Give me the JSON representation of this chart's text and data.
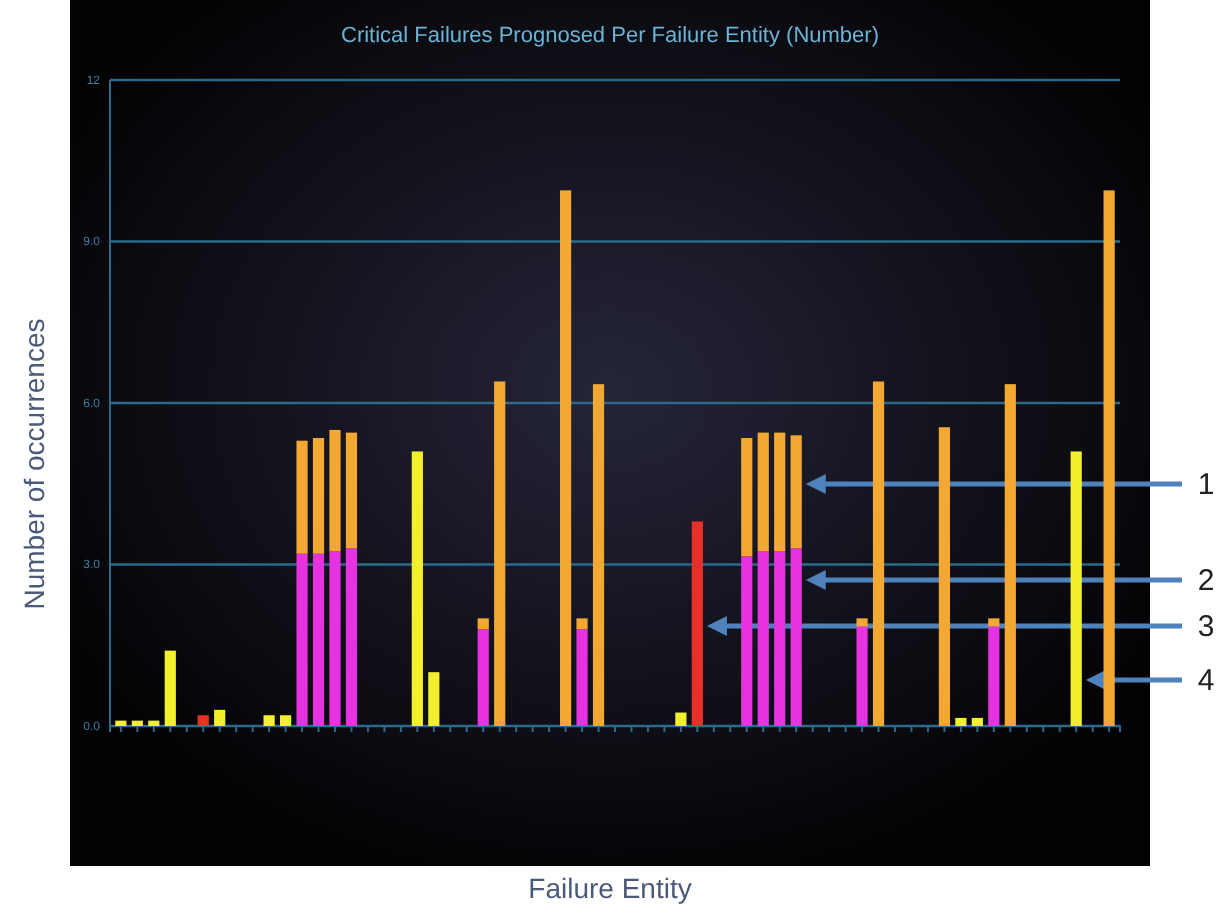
{
  "chart_data": {
    "type": "bar",
    "title": "Critical Failures Prognosed Per Failure Entity (Number)",
    "xlabel": "Failure Entity",
    "ylabel": "Number of occurrences",
    "categories": [
      null,
      null,
      null,
      null,
      null,
      null,
      null,
      null,
      null,
      null,
      null,
      null,
      null,
      null,
      null,
      null,
      null,
      null,
      null,
      null,
      null,
      null,
      null,
      null,
      null,
      null,
      null,
      null,
      null,
      null,
      null,
      null,
      null,
      null,
      null,
      null,
      null,
      null,
      null,
      null,
      null,
      null,
      null,
      null,
      null,
      null,
      null,
      null,
      null,
      null,
      null,
      null,
      null,
      null,
      null,
      null,
      null,
      null,
      null,
      null,
      null
    ],
    "stacked": true,
    "ylim": [
      0,
      12
    ],
    "yticks": [
      {
        "value": 0,
        "label": "0.0"
      },
      {
        "value": 3,
        "label": "3.0"
      },
      {
        "value": 6,
        "label": "6.0"
      },
      {
        "value": 9,
        "label": "9.0"
      },
      12
    ],
    "grid": "y",
    "series": [
      {
        "color": "#f2f02c",
        "values": [
          0.1,
          0.1,
          0.1,
          1.4,
          null,
          null,
          0.3,
          null,
          null,
          0.2,
          0.2,
          null,
          null,
          null,
          null,
          null,
          null,
          null,
          5.1,
          1.0,
          null,
          null,
          null,
          null,
          null,
          null,
          null,
          null,
          null,
          null,
          null,
          null,
          null,
          null,
          0.25,
          null,
          null,
          null,
          null,
          null,
          null,
          null,
          null,
          null,
          null,
          null,
          null,
          null,
          null,
          null,
          null,
          0.15,
          0.15,
          null,
          null,
          null,
          null,
          null,
          5.1,
          null,
          null
        ]
      },
      {
        "color": "#e8302a",
        "values": [
          null,
          null,
          null,
          null,
          null,
          0.2,
          null,
          null,
          null,
          null,
          null,
          null,
          null,
          null,
          null,
          null,
          null,
          null,
          null,
          null,
          null,
          null,
          null,
          null,
          null,
          null,
          null,
          null,
          null,
          null,
          null,
          null,
          null,
          null,
          null,
          3.8,
          null,
          null,
          null,
          null,
          null,
          null,
          null,
          null,
          null,
          null,
          null,
          null,
          null,
          null,
          null,
          null,
          null,
          null,
          null,
          null,
          null,
          null,
          null,
          null,
          null
        ]
      },
      {
        "color": "#e632e0",
        "values": [
          null,
          null,
          null,
          null,
          null,
          null,
          null,
          null,
          null,
          null,
          null,
          3.2,
          3.2,
          3.25,
          3.3,
          null,
          null,
          null,
          null,
          null,
          null,
          null,
          1.8,
          null,
          null,
          null,
          null,
          null,
          1.8,
          null,
          null,
          null,
          null,
          null,
          null,
          null,
          null,
          null,
          3.15,
          3.25,
          3.25,
          3.3,
          null,
          null,
          null,
          1.85,
          null,
          null,
          null,
          null,
          null,
          null,
          null,
          1.85,
          null,
          null,
          null,
          null,
          null,
          null,
          null
        ]
      },
      {
        "color": "#f2a832",
        "values": [
          null,
          null,
          null,
          null,
          null,
          null,
          null,
          null,
          null,
          null,
          null,
          2.1,
          2.15,
          2.25,
          2.15,
          null,
          null,
          null,
          null,
          null,
          null,
          null,
          0.2,
          6.4,
          null,
          null,
          null,
          9.95,
          0.2,
          6.35,
          null,
          null,
          null,
          null,
          null,
          null,
          null,
          null,
          2.2,
          2.2,
          2.2,
          2.1,
          null,
          null,
          null,
          0.15,
          6.4,
          null,
          null,
          null,
          5.55,
          null,
          null,
          0.15,
          6.35,
          null,
          null,
          null,
          null,
          null,
          9.95
        ]
      }
    ],
    "annotations": [
      "1",
      "2",
      "3",
      "4"
    ]
  }
}
